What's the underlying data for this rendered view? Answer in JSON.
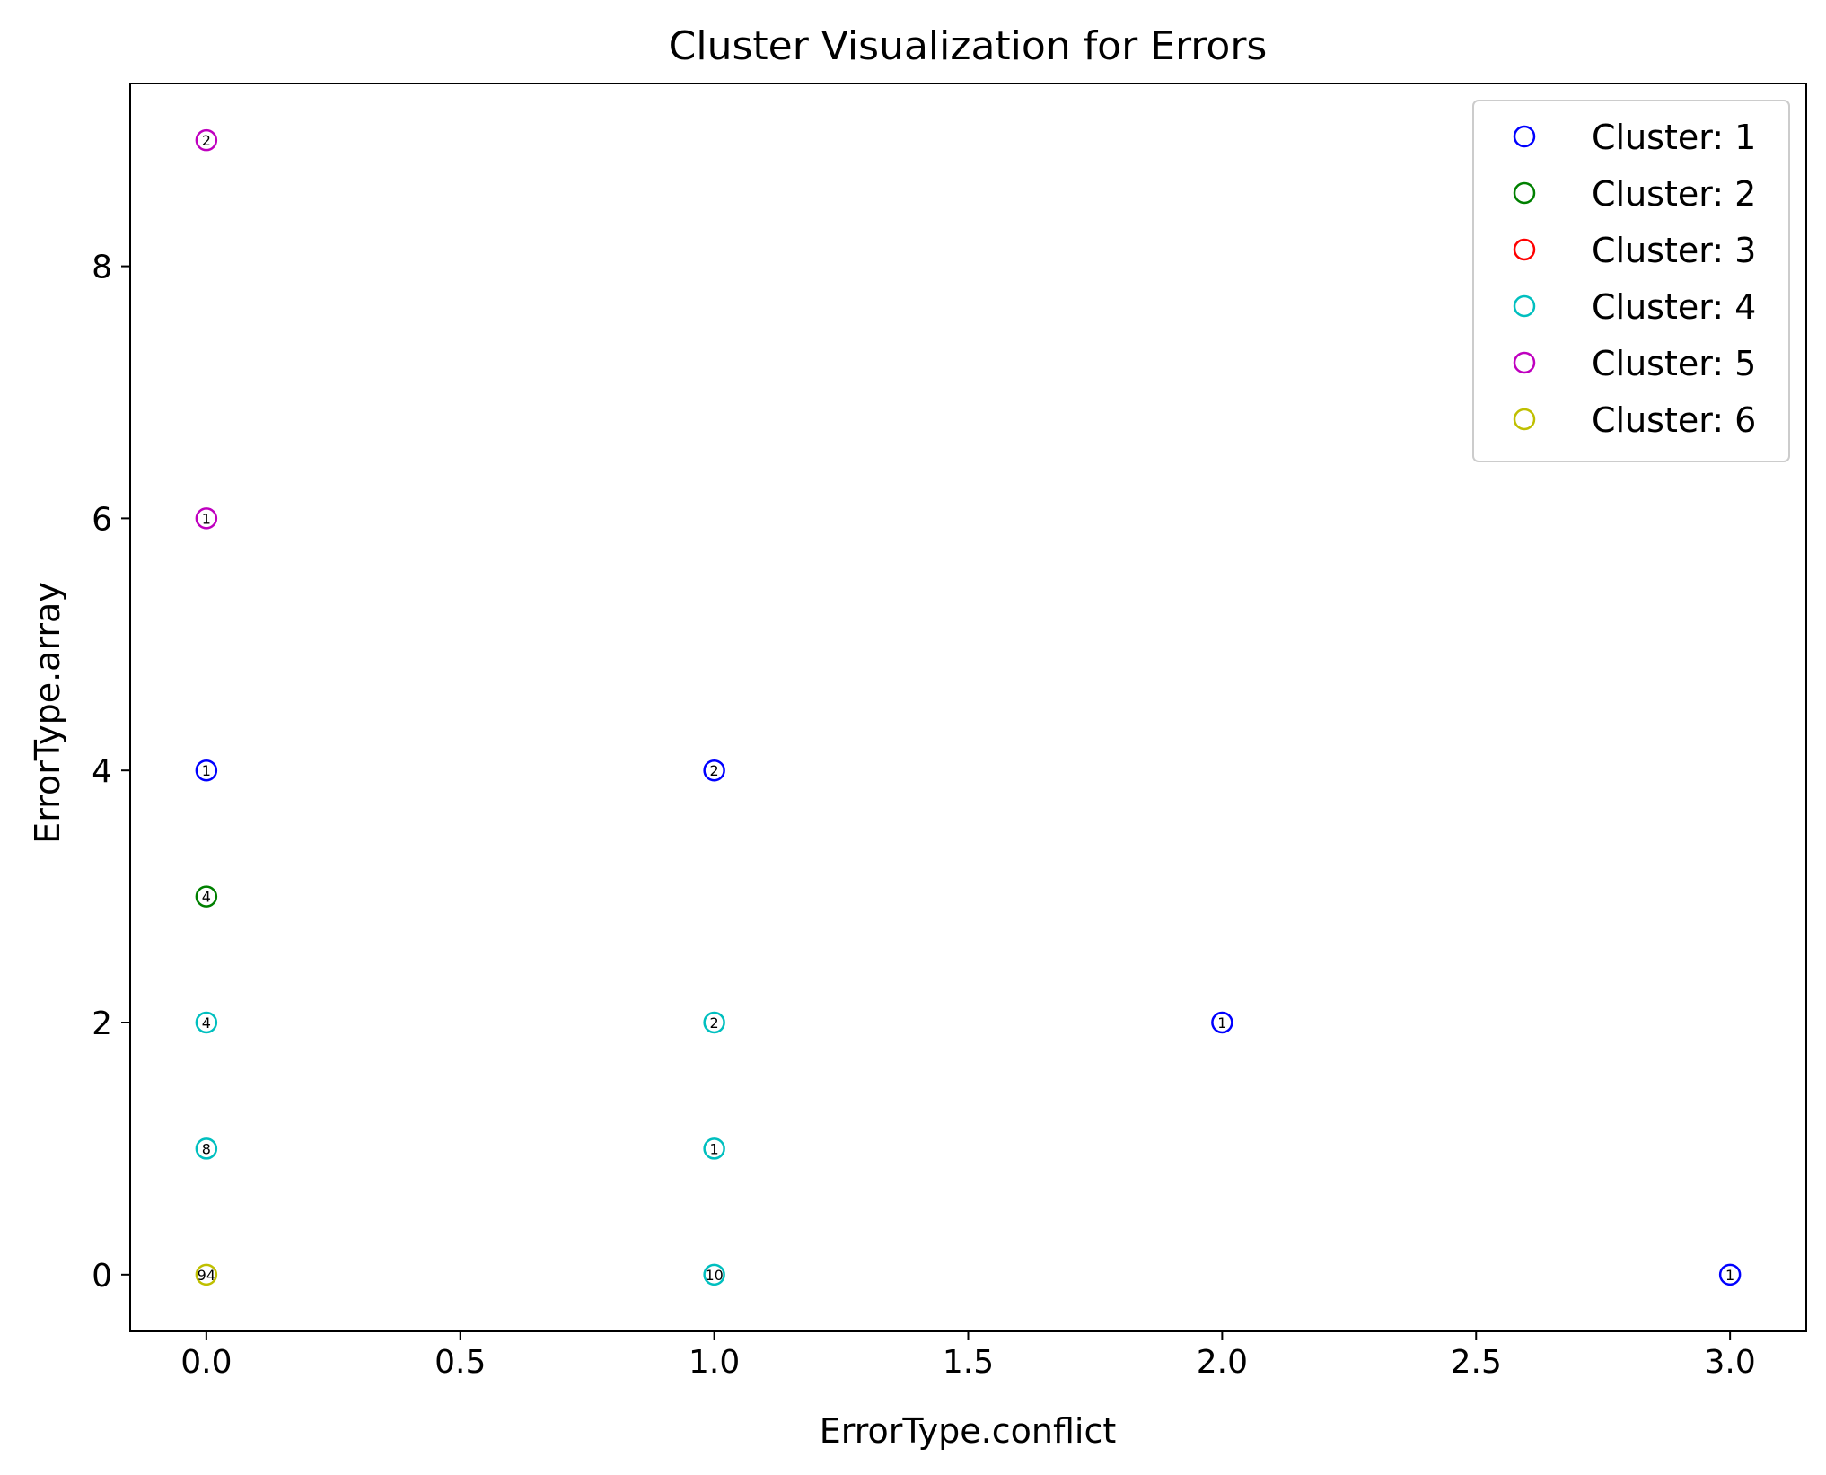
{
  "chart_data": {
    "type": "scatter",
    "title": "Cluster Visualization for Errors",
    "xlabel": "ErrorType.conflict",
    "ylabel": "ErrorType.array",
    "xlim": [
      -0.15,
      3.15
    ],
    "ylim": [
      -0.45,
      9.45
    ],
    "xticks": [
      0.0,
      0.5,
      1.0,
      1.5,
      2.0,
      2.5,
      3.0
    ],
    "xtick_labels": [
      "0.0",
      "0.5",
      "1.0",
      "1.5",
      "2.0",
      "2.5",
      "3.0"
    ],
    "yticks": [
      0,
      2,
      4,
      6,
      8
    ],
    "ytick_labels": [
      "0",
      "2",
      "4",
      "6",
      "8"
    ],
    "grid": false,
    "legend_position": "top-right",
    "marker": "hollow-circle",
    "series": [
      {
        "name": "Cluster: 1",
        "color": "#0000ff",
        "points": [
          {
            "x": 0,
            "y": 4,
            "label": "1"
          },
          {
            "x": 1,
            "y": 4,
            "label": "2"
          },
          {
            "x": 2,
            "y": 2,
            "label": "1"
          },
          {
            "x": 3,
            "y": 0,
            "label": "1"
          }
        ]
      },
      {
        "name": "Cluster: 2",
        "color": "#008000",
        "points": [
          {
            "x": 0,
            "y": 3,
            "label": "4"
          }
        ]
      },
      {
        "name": "Cluster: 3",
        "color": "#ff0000",
        "points": []
      },
      {
        "name": "Cluster: 4",
        "color": "#00bfbf",
        "points": [
          {
            "x": 0,
            "y": 2,
            "label": "4"
          },
          {
            "x": 0,
            "y": 1,
            "label": "8"
          },
          {
            "x": 1,
            "y": 2,
            "label": "2"
          },
          {
            "x": 1,
            "y": 1,
            "label": "1"
          },
          {
            "x": 1,
            "y": 0,
            "label": "10"
          }
        ]
      },
      {
        "name": "Cluster: 5",
        "color": "#bf00bf",
        "points": [
          {
            "x": 0,
            "y": 9,
            "label": "2"
          },
          {
            "x": 0,
            "y": 6,
            "label": "1"
          }
        ]
      },
      {
        "name": "Cluster: 6",
        "color": "#bfbf00",
        "points": [
          {
            "x": 0,
            "y": 0,
            "label": "94"
          }
        ]
      }
    ]
  }
}
